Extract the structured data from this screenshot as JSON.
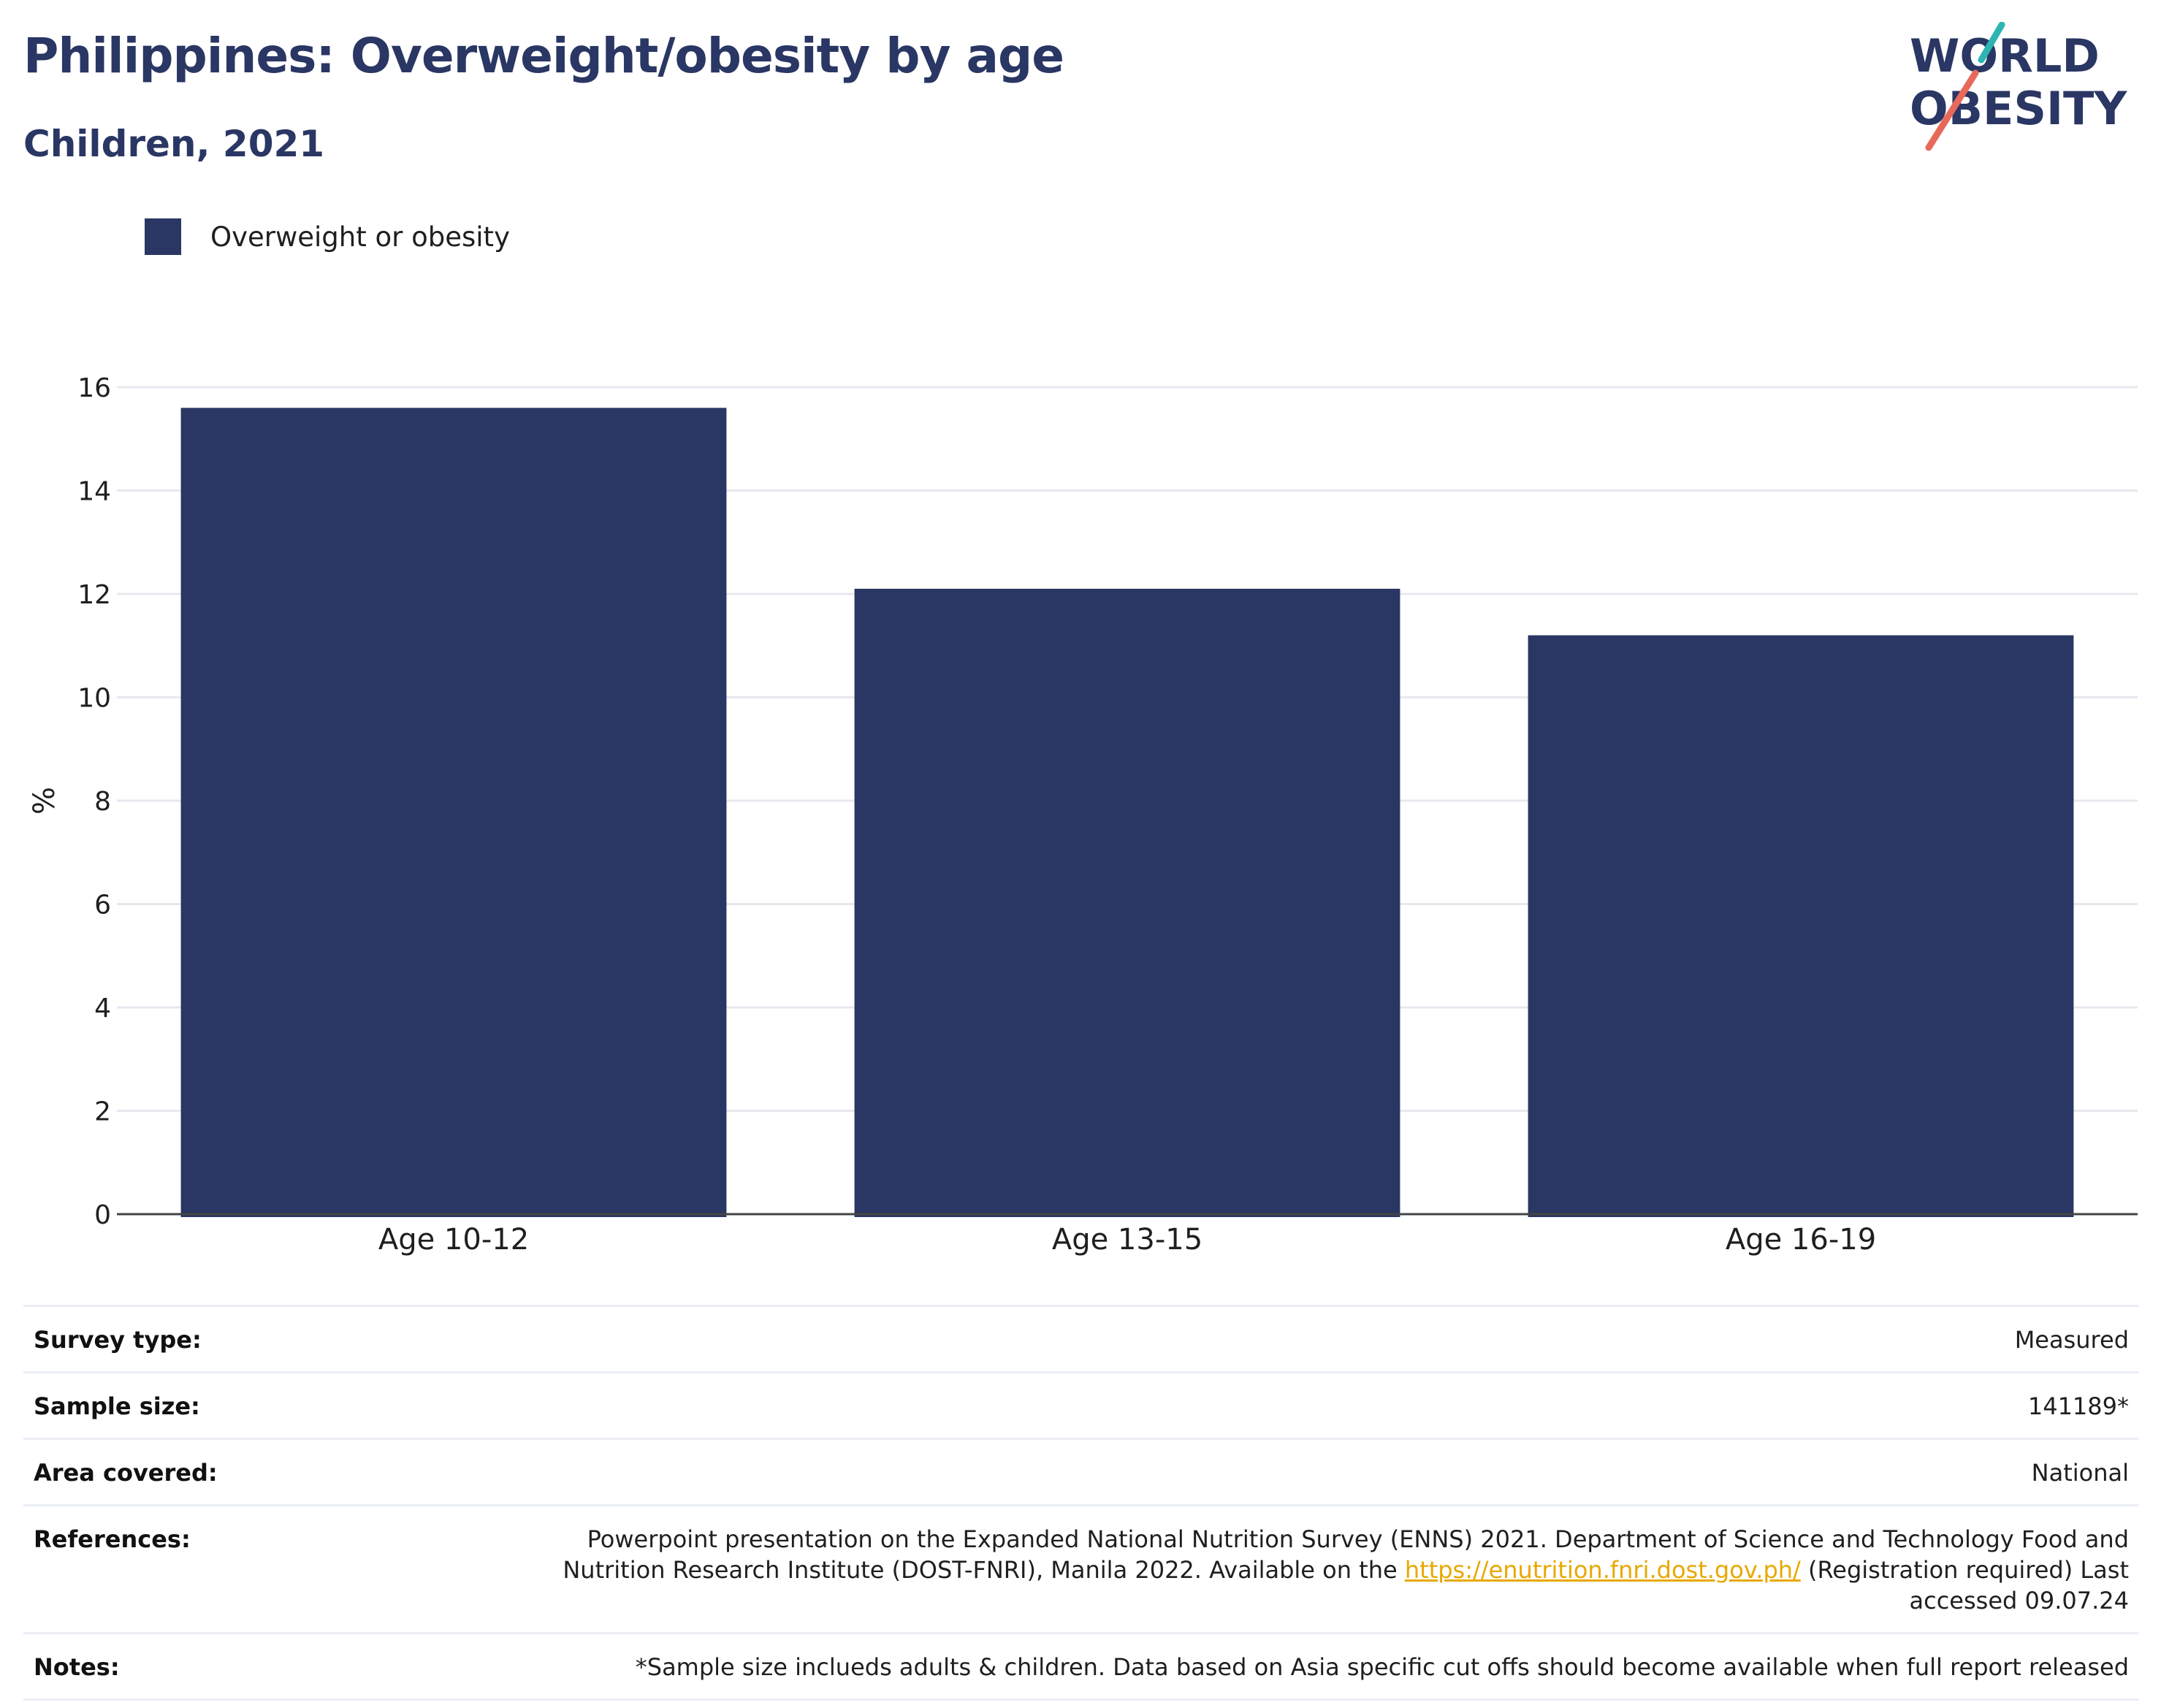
{
  "header": {
    "title": "Philippines: Overweight/obesity by age",
    "subtitle": "Children, 2021",
    "logo_line1": "WORLD",
    "logo_line2": "OBESITY"
  },
  "legend": {
    "items": [
      {
        "label": "Overweight or obesity",
        "color": "#2a3663"
      }
    ]
  },
  "chart_data": {
    "type": "bar",
    "categories": [
      "Age 10-12",
      "Age 13-15",
      "Age 16-19"
    ],
    "series": [
      {
        "name": "Overweight or obesity",
        "values": [
          15.6,
          12.1,
          11.2
        ],
        "color": "#2a3663"
      }
    ],
    "ylabel": "%",
    "xlabel": "",
    "ylim": [
      0,
      16
    ],
    "yticks": [
      "0",
      "2",
      "4",
      "6",
      "8",
      "10",
      "12",
      "14",
      "16"
    ],
    "grid": true,
    "legend_position": "top-left"
  },
  "meta": {
    "rows": [
      {
        "key": "Survey type:",
        "value": "Measured"
      },
      {
        "key": "Sample size:",
        "value": "141189*"
      },
      {
        "key": "Area covered:",
        "value": "National"
      }
    ],
    "references": {
      "key": "References:",
      "text_before": "Powerpoint presentation on the Expanded National Nutrition Survey (ENNS) 2021. Department of Science and Technology Food and Nutrition Research Institute (DOST-FNRI), Manila 2022. Available on the ",
      "link": "https://enutrition.fnri.dost.gov.ph/",
      "text_after": " (Registration required) Last accessed 09.07.24"
    },
    "notes": {
      "key": "Notes:",
      "value": "*Sample size inclueds adults & children. Data based on Asia specific cut offs should become available when full report released"
    }
  },
  "colors": {
    "bar": "#2a3663",
    "title": "#2a3663",
    "logo_teal": "#2cb5b2",
    "logo_coral": "#e8695a",
    "grid": "#e6e8ef",
    "link": "#e8a800"
  }
}
